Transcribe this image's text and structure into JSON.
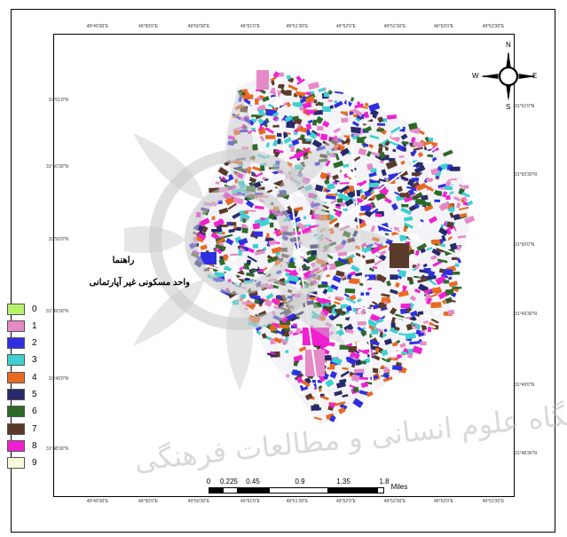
{
  "map": {
    "top_ticks": [
      "49°49'30\"E",
      "49°50'0\"E",
      "49°50'30\"E",
      "49°51'0\"E",
      "49°51'30\"E",
      "49°52'0\"E",
      "49°52'30\"E",
      "49°53'0\"E",
      "49°53'30\"E"
    ],
    "bottom_ticks": [
      "49°49'30\"E",
      "49°50'0\"E",
      "49°50'30\"E",
      "49°51'0\"E",
      "49°51'30\"E",
      "49°52'0\"E",
      "49°52'30\"E",
      "49°53'0\"E",
      "49°53'30\"E"
    ],
    "left_ticks": [
      "31°51'0\"N",
      "31°50'30\"N",
      "31°50'0\"N",
      "31°49'30\"N",
      "31°49'0\"N",
      "31°48'30\"N"
    ],
    "right_ticks": [
      "31°51'0\"N",
      "31°50'30\"N",
      "31°50'0\"N",
      "31°49'30\"N",
      "31°49'0\"N",
      "31°48'30\"N"
    ]
  },
  "compass": {
    "n": "N",
    "s": "S",
    "e": "E",
    "w": "W"
  },
  "legend": {
    "title": "راهنما",
    "subtitle": "واحد مسکونی غیر آپارتمانی",
    "items": [
      {
        "label": "0",
        "color": "#b7f06a"
      },
      {
        "label": "1",
        "color": "#e58ac8"
      },
      {
        "label": "2",
        "color": "#2f2fe0"
      },
      {
        "label": "3",
        "color": "#3fd0d0"
      },
      {
        "label": "4",
        "color": "#e86a20"
      },
      {
        "label": "5",
        "color": "#262a6a"
      },
      {
        "label": "6",
        "color": "#2d6a2a"
      },
      {
        "label": "7",
        "color": "#5a3a2a"
      },
      {
        "label": "8",
        "color": "#f020d0"
      },
      {
        "label": "9",
        "color": "#fafadc"
      }
    ]
  },
  "scalebar": {
    "labels": [
      "0",
      "0.225",
      "0.45",
      "0.9",
      "1.35",
      "1.8"
    ],
    "unit": "Miles"
  },
  "watermark": {
    "text": "پژوهشگاه علوم انسانی و مطالعات فرهنگی"
  }
}
